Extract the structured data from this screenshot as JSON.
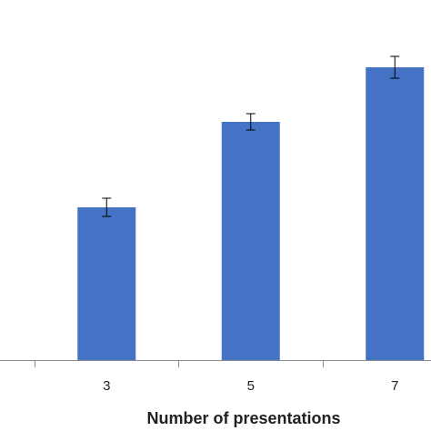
{
  "chart_data": {
    "type": "bar",
    "x_label": "Number of presentations",
    "categories": [
      "3",
      "5",
      "7"
    ],
    "values": [
      168,
      262,
      322
    ],
    "errors": [
      10,
      9,
      12
    ],
    "color": "#4472c4",
    "ylim": [
      0,
      396
    ]
  }
}
